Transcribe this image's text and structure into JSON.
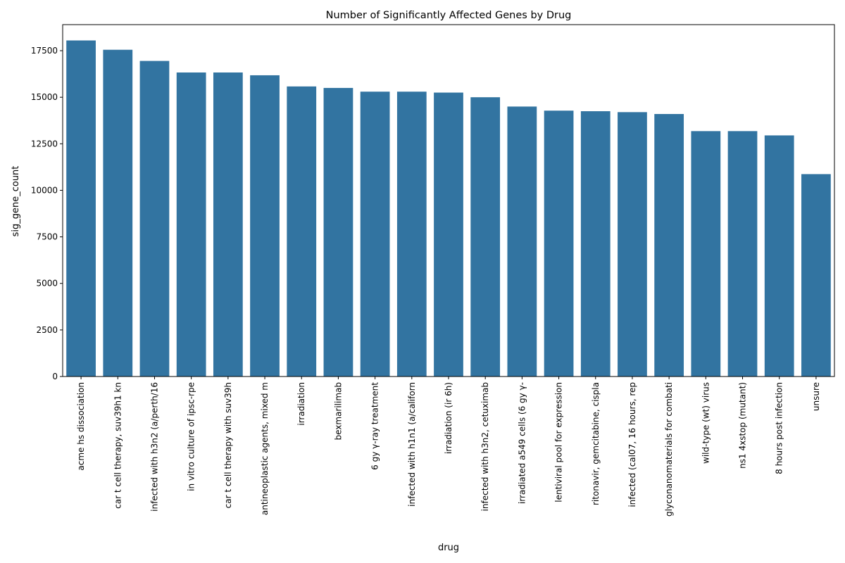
{
  "chart_data": {
    "type": "bar",
    "title": "Number of Significantly Affected Genes by Drug",
    "xlabel": "drug",
    "ylabel": "sig_gene_count",
    "ylim": [
      0,
      18900
    ],
    "yticks": [
      0,
      2500,
      5000,
      7500,
      10000,
      12500,
      15000,
      17500
    ],
    "grid": false,
    "bar_color": "#3274a1",
    "categories": [
      "acme hs dissociation",
      "car t cell therapy, suv39h1 kn",
      "infected with h3n2 (a/perth/16",
      "in vitro culture of ipsc-rpe",
      "car t cell therapy with suv39h",
      "antineoplastic agents, mixed m",
      "irradiation",
      "bexmarilimab",
      "6 gy γ-ray treatment",
      "infected with h1n1 (a/californ",
      "irradiation (ir 6h)",
      "infected with h3n2, cetuximab",
      "irradiated a549 cells (6 gy γ-",
      "lentiviral pool for expression",
      "ritonavir, gemcitabine, cispla",
      "infected (cal07, 16 hours, rep",
      "glyconanomaterials for combati",
      "wild-type (wt) virus",
      "ns1 4xstop (mutant)",
      "8 hours post infection",
      "unsure"
    ],
    "values": [
      18050,
      17550,
      16950,
      16330,
      16330,
      16180,
      15580,
      15500,
      15300,
      15300,
      15250,
      15000,
      14500,
      14280,
      14250,
      14200,
      14100,
      13180,
      13180,
      12950,
      10870
    ]
  }
}
